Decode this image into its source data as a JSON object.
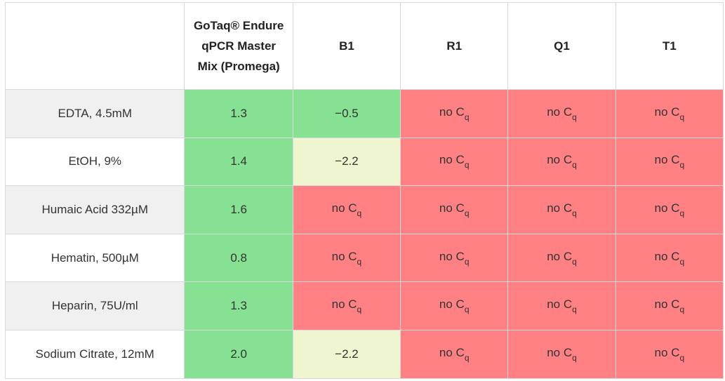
{
  "table": {
    "headers": [
      "",
      "GoTaq® Endure qPCR Master Mix (Promega)",
      "B1",
      "R1",
      "Q1",
      "T1"
    ],
    "rows": [
      {
        "label": "EDTA, 4.5mM",
        "cells": [
          {
            "text": "1.3",
            "status": "green"
          },
          {
            "text": "−0.5",
            "status": "green"
          },
          {
            "text": "no C",
            "sub": "q",
            "status": "red"
          },
          {
            "text": "no C",
            "sub": "q",
            "status": "red"
          },
          {
            "text": "no C",
            "sub": "q",
            "status": "red"
          }
        ]
      },
      {
        "label": "EtOH, 9%",
        "cells": [
          {
            "text": "1.4",
            "status": "green"
          },
          {
            "text": "−2.2",
            "status": "light"
          },
          {
            "text": "no C",
            "sub": "q",
            "status": "red"
          },
          {
            "text": "no C",
            "sub": "q",
            "status": "red"
          },
          {
            "text": "no C",
            "sub": "q",
            "status": "red"
          }
        ]
      },
      {
        "label": "Humaic Acid 332µM",
        "cells": [
          {
            "text": "1.6",
            "status": "green"
          },
          {
            "text": "no C",
            "sub": "q",
            "status": "red"
          },
          {
            "text": "no C",
            "sub": "q",
            "status": "red"
          },
          {
            "text": "no C",
            "sub": "q",
            "status": "red"
          },
          {
            "text": "no C",
            "sub": "q",
            "status": "red"
          }
        ]
      },
      {
        "label": "Hematin, 500µM",
        "cells": [
          {
            "text": "0.8",
            "status": "green"
          },
          {
            "text": "no C",
            "sub": "q",
            "status": "red"
          },
          {
            "text": "no C",
            "sub": "q",
            "status": "red"
          },
          {
            "text": "no C",
            "sub": "q",
            "status": "red"
          },
          {
            "text": "no C",
            "sub": "q",
            "status": "red"
          }
        ]
      },
      {
        "label": "Heparin, 75U/ml",
        "cells": [
          {
            "text": "1.3",
            "status": "green"
          },
          {
            "text": "no C",
            "sub": "q",
            "status": "red"
          },
          {
            "text": "no C",
            "sub": "q",
            "status": "red"
          },
          {
            "text": "no C",
            "sub": "q",
            "status": "red"
          },
          {
            "text": "no C",
            "sub": "q",
            "status": "red"
          }
        ]
      },
      {
        "label": "Sodium Citrate, 12mM",
        "cells": [
          {
            "text": "2.0",
            "status": "green"
          },
          {
            "text": "−2.2",
            "status": "light"
          },
          {
            "text": "no C",
            "sub": "q",
            "status": "red"
          },
          {
            "text": "no C",
            "sub": "q",
            "status": "red"
          },
          {
            "text": "no C",
            "sub": "q",
            "status": "red"
          }
        ]
      }
    ]
  },
  "colors": {
    "green": "#86e192",
    "light": "#eff5cf",
    "red": "#ff8184",
    "row_shade": "#f0f0f0",
    "border": "#d9d9d9"
  }
}
